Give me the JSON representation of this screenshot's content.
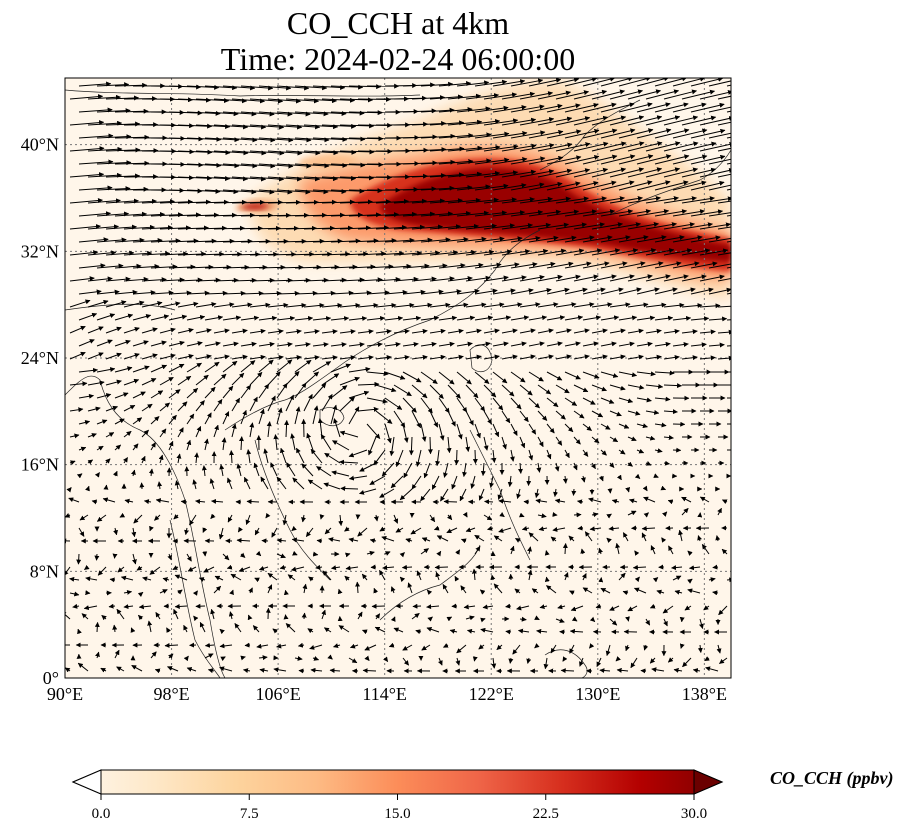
{
  "title": {
    "line1": "CO_CCH at 4km",
    "line2": "Time: 2024-02-24 06:00:00"
  },
  "map": {
    "lon_range": [
      90,
      140
    ],
    "lat_range": [
      0,
      45
    ],
    "lon_ticks": [
      {
        "value": 90,
        "label": "90°E"
      },
      {
        "value": 98,
        "label": "98°E"
      },
      {
        "value": 106,
        "label": "106°E"
      },
      {
        "value": 114,
        "label": "114°E"
      },
      {
        "value": 122,
        "label": "122°E"
      },
      {
        "value": 130,
        "label": "130°E"
      },
      {
        "value": 138,
        "label": "138°E"
      }
    ],
    "lat_ticks": [
      {
        "value": 0,
        "label": "0°"
      },
      {
        "value": 8,
        "label": "8°N"
      },
      {
        "value": 16,
        "label": "16°N"
      },
      {
        "value": 24,
        "label": "24°N"
      },
      {
        "value": 32,
        "label": "32°N"
      },
      {
        "value": 40,
        "label": "40°N"
      }
    ],
    "gridlines": true,
    "field_colormap": "OrRd",
    "vector_color": "#000000"
  },
  "colorbar": {
    "label": "CO_CCH (ppbv)",
    "range": [
      0,
      30
    ],
    "extend": "both",
    "ticks": [
      {
        "value": 0,
        "label": "0.0"
      },
      {
        "value": 7.5,
        "label": "7.5"
      },
      {
        "value": 15,
        "label": "15.0"
      },
      {
        "value": 22.5,
        "label": "22.5"
      },
      {
        "value": 30,
        "label": "30.0"
      }
    ],
    "stops": [
      "#fff7ec",
      "#fee8c8",
      "#fdd49e",
      "#fdbb84",
      "#fc8d59",
      "#ef6548",
      "#d7301f",
      "#b30000",
      "#7f0000"
    ]
  }
}
